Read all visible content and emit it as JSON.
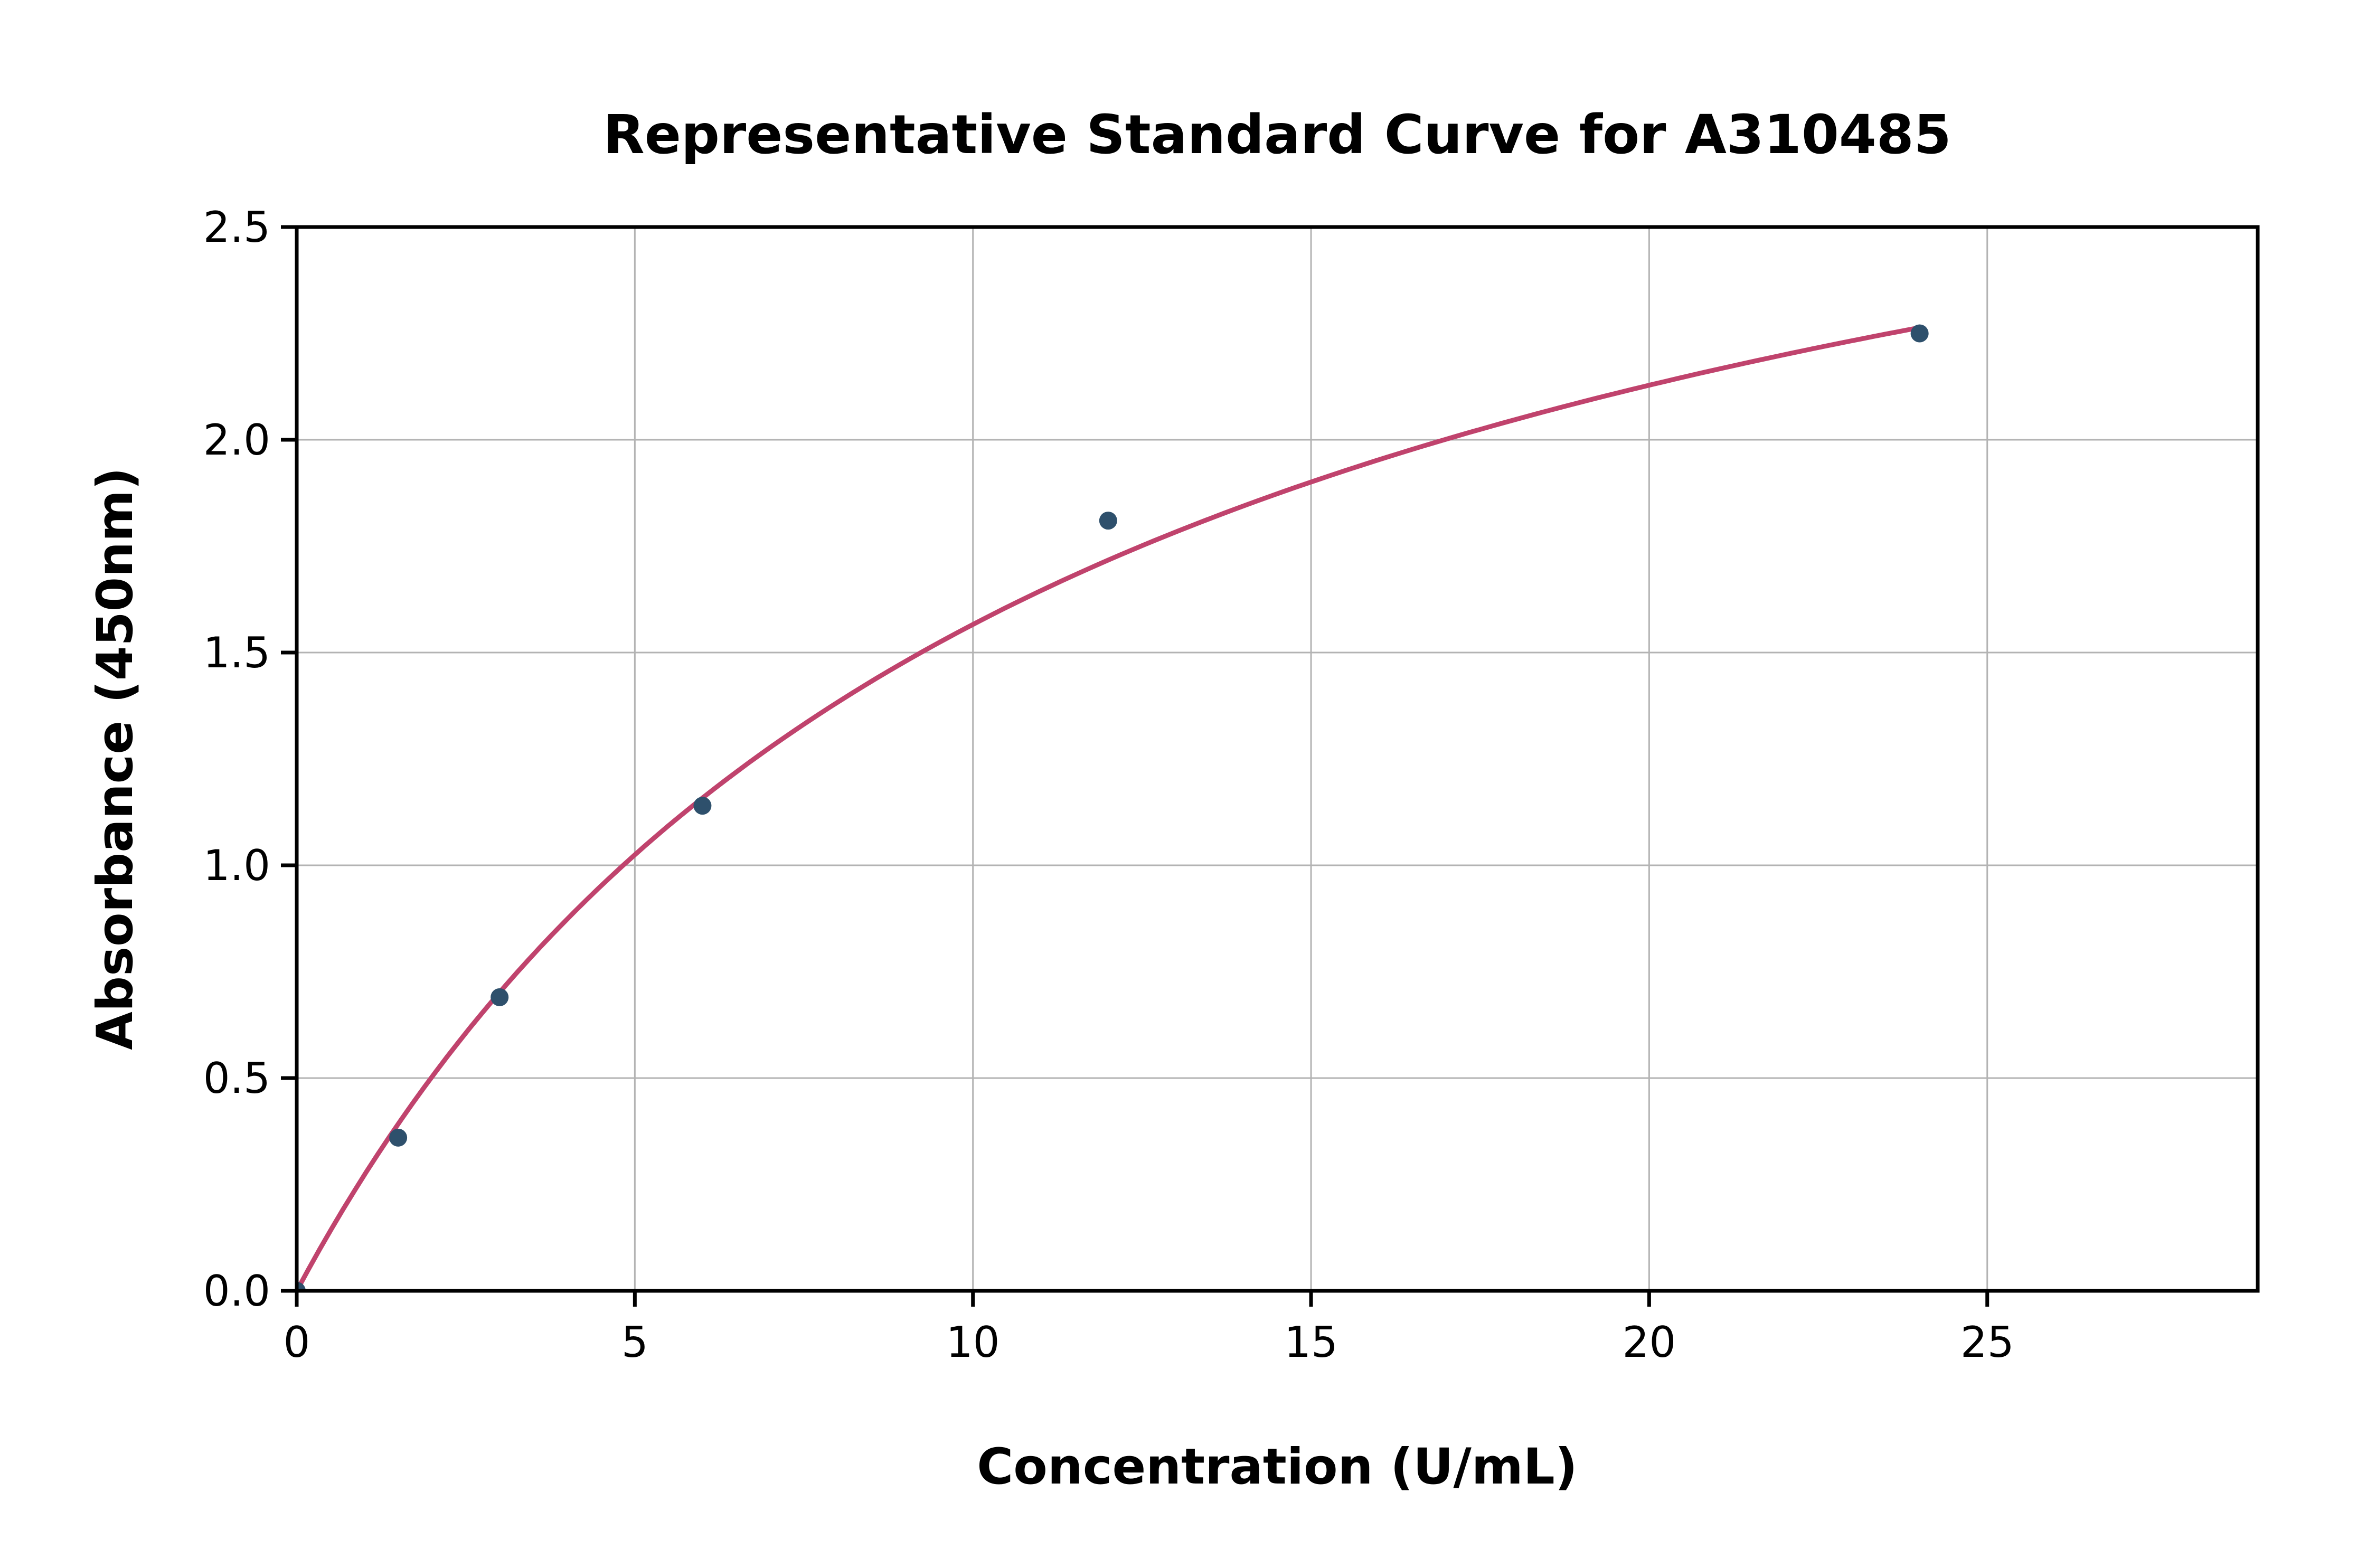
{
  "chart_data": {
    "type": "scatter",
    "title": "Representative Standard Curve for A310485",
    "xlabel": "Concentration (U/mL)",
    "ylabel": "Absorbance (450nm)",
    "xlim": [
      0,
      29
    ],
    "ylim": [
      0,
      2.5
    ],
    "xticks": [
      0,
      5,
      10,
      15,
      20,
      25
    ],
    "xtick_labels": [
      "0",
      "5",
      "10",
      "15",
      "20",
      "25"
    ],
    "yticks": [
      0.0,
      0.5,
      1.0,
      1.5,
      2.0,
      2.5
    ],
    "ytick_labels": [
      "0.0",
      "0.5",
      "1.0",
      "1.5",
      "2.0",
      "2.5"
    ],
    "grid": true,
    "legend": "none",
    "points": [
      {
        "x": 0,
        "y": 0.0
      },
      {
        "x": 1.5,
        "y": 0.36
      },
      {
        "x": 3,
        "y": 0.69
      },
      {
        "x": 6,
        "y": 1.14
      },
      {
        "x": 12,
        "y": 1.81
      },
      {
        "x": 24,
        "y": 2.25
      }
    ],
    "fit_curve": {
      "model": "michaelis_menten",
      "vmax": 3.32,
      "km": 11.2,
      "x_range": [
        0,
        24
      ]
    },
    "colors": {
      "curve": "#c0436d",
      "points": "#2e506c",
      "grid": "#b3b3b3",
      "axis": "#000000",
      "background": "#ffffff"
    }
  }
}
